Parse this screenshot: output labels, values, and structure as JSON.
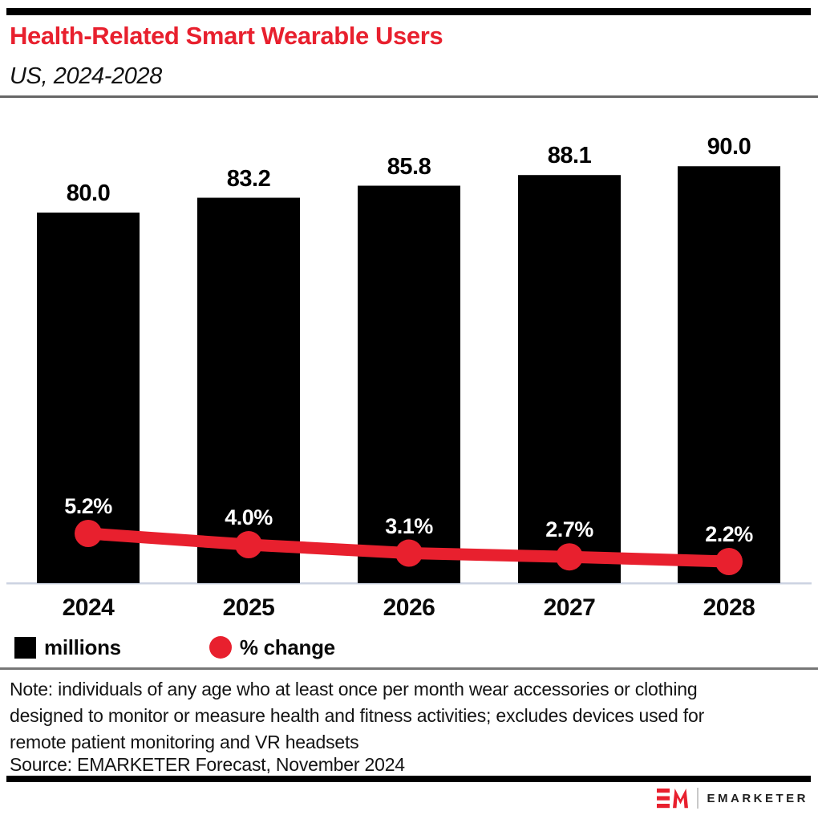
{
  "header": {
    "title": "Health-Related Smart Wearable Users",
    "subtitle": "US, 2024-2028"
  },
  "colors": {
    "accent_red": "#e8202e",
    "bar_black": "#000000",
    "axis_line": "#ccd3e2"
  },
  "chart_data": {
    "type": "bar",
    "title": "Health-Related Smart Wearable Users",
    "subtitle": "US, 2024-2028",
    "categories": [
      "2024",
      "2025",
      "2026",
      "2027",
      "2028"
    ],
    "series": [
      {
        "name": "millions",
        "type": "bar",
        "color": "#000000",
        "values": [
          80.0,
          83.2,
          85.8,
          88.1,
          90.0
        ],
        "labels": [
          "80.0",
          "83.2",
          "85.8",
          "88.1",
          "90.0"
        ]
      },
      {
        "name": "% change",
        "type": "line",
        "color": "#e8202e",
        "values": [
          5.2,
          4.0,
          3.1,
          2.7,
          2.2
        ],
        "labels": [
          "5.2%",
          "4.0%",
          "3.1%",
          "2.7%",
          "2.2%"
        ]
      }
    ],
    "xlabel": "",
    "ylabel": "",
    "grid": false,
    "legend_position": "bottom",
    "value_label_position": "above-bar",
    "pct_label_position": "above-point"
  },
  "legend": {
    "items": [
      {
        "label": "millions",
        "swatch": "square",
        "color": "#000000"
      },
      {
        "label": "% change",
        "swatch": "circle",
        "color": "#e8202e"
      }
    ]
  },
  "note": {
    "lines": [
      "Note: individuals of any age who at least once per month wear accessories or clothing",
      "designed to monitor or measure health and fitness activities; excludes devices used for",
      "remote patient monitoring and VR headsets"
    ]
  },
  "source": {
    "text": "Source: EMARKETER Forecast, November 2024"
  },
  "logo": {
    "monogram": "EM",
    "wordmark": "EMARKETER"
  }
}
